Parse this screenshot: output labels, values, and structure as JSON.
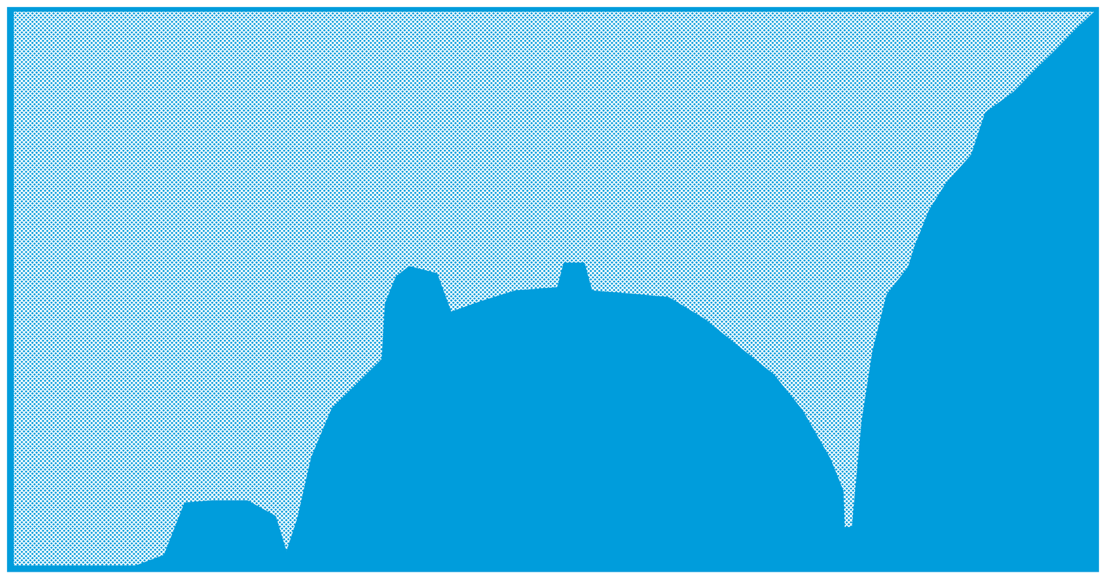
{
  "chart_data": {
    "type": "area",
    "color": "#009ddc",
    "tick_labels": false,
    "xlim": [
      0,
      100
    ],
    "ylim": [
      0,
      100
    ],
    "xticks": [],
    "yticks": [],
    "x": [
      0,
      11.5,
      14.1,
      16.0,
      18.6,
      21.8,
      24.4,
      25.4,
      26.4,
      27.7,
      29.6,
      31.6,
      34.2,
      34.5,
      35.5,
      36.7,
      39.3,
      40.6,
      43.2,
      46.5,
      50.4,
      51.0,
      52.9,
      53.6,
      57.5,
      60.7,
      64.0,
      67.2,
      70.4,
      73.0,
      75.6,
      76.8,
      76.9,
      77.6,
      77.9,
      78.5,
      79.5,
      80.8,
      82.8,
      83.4,
      84.7,
      86.3,
      88.6,
      89.9,
      92.5,
      94.4,
      96.4,
      98.3,
      100
    ],
    "values": [
      0.4,
      0.4,
      2.3,
      11.7,
      12.1,
      12.1,
      9.3,
      2.9,
      8.8,
      19.9,
      28.7,
      32.5,
      37.5,
      47.5,
      52.3,
      54.2,
      52.9,
      46.0,
      47.8,
      49.8,
      50.4,
      54.8,
      54.8,
      49.8,
      49.2,
      48.6,
      44.7,
      39.7,
      34.7,
      28.4,
      19.6,
      13.8,
      7.3,
      7.3,
      13.8,
      26.4,
      39.0,
      49.1,
      54.1,
      57.9,
      64.2,
      69.2,
      74.2,
      81.8,
      85.5,
      89.3,
      93.1,
      96.9,
      100
    ]
  }
}
